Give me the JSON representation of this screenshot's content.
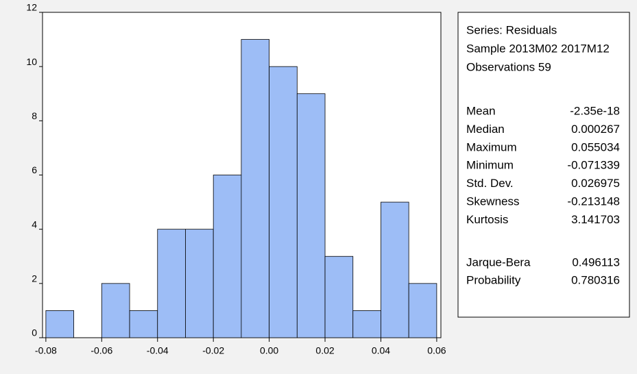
{
  "chart_data": {
    "type": "histogram",
    "bins": [
      -0.08,
      -0.07,
      -0.06,
      -0.05,
      -0.04,
      -0.03,
      -0.02,
      -0.01,
      0,
      0.01,
      0.02,
      0.03,
      0.04,
      0.05,
      0.06
    ],
    "values": [
      1,
      0,
      2,
      1,
      4,
      4,
      6,
      11,
      10,
      9,
      3,
      1,
      5,
      2
    ],
    "color": "#9dbdf6",
    "xlim": [
      -0.0812,
      0.0615
    ],
    "xticks": [
      -0.08,
      -0.06,
      -0.04,
      -0.02,
      {
        "value": 0,
        "label": "0.00"
      },
      0.02,
      0.04,
      0.06
    ],
    "ylim": [
      0,
      12
    ],
    "yticks": [
      0,
      2,
      4,
      6,
      8,
      10,
      12
    ],
    "grid": false,
    "stats": {
      "lines": [
        "Series: Residuals",
        "Sample 2013M02 2017M12",
        "Observations 59"
      ],
      "groups": [
        [
          [
            "Mean",
            "-2.35e-18"
          ],
          [
            "Median",
            "0.000267"
          ],
          [
            "Maximum",
            "0.055034"
          ],
          [
            "Minimum",
            "-0.071339"
          ],
          [
            "Std. Dev.",
            "0.026975"
          ],
          [
            "Skewness",
            "-0.213148"
          ],
          [
            "Kurtosis",
            "3.141703"
          ]
        ],
        [
          [
            "Jarque-Bera",
            "0.496113"
          ],
          [
            "Probability",
            "0.780316"
          ]
        ]
      ]
    }
  }
}
